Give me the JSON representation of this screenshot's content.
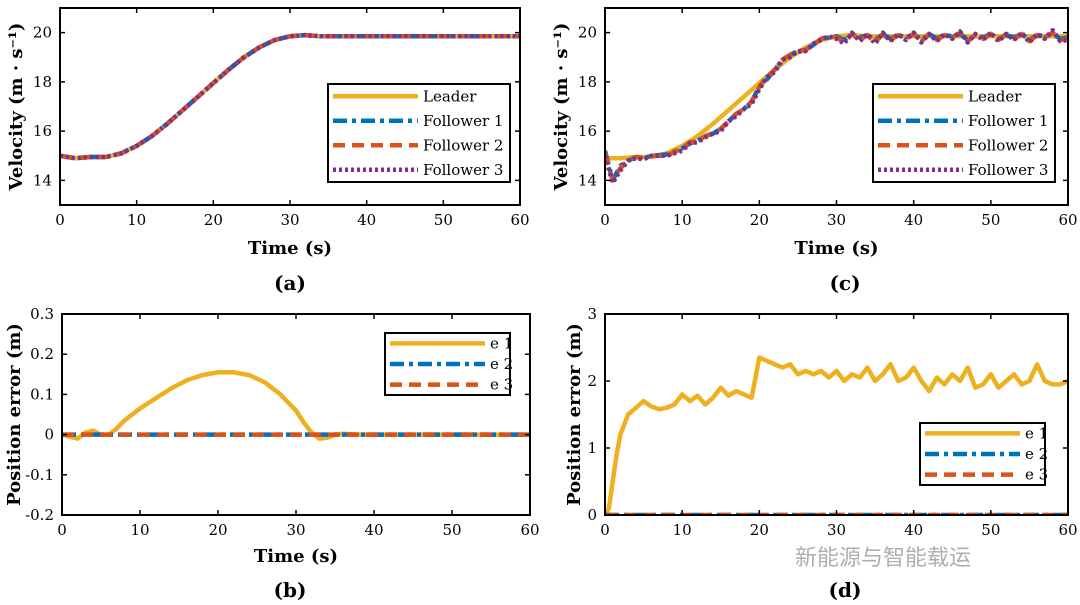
{
  "chart_data": [
    {
      "id": "a",
      "type": "line",
      "caption": "(a)",
      "xlabel": "Time (s)",
      "ylabel": "Velocity (m · s⁻¹)",
      "xlim": [
        0,
        60
      ],
      "ylim": [
        13,
        21
      ],
      "xticks": [
        0,
        10,
        20,
        30,
        40,
        50,
        60
      ],
      "yticks": [
        14,
        16,
        18,
        20
      ],
      "grid": false,
      "legend_position": "lower-right",
      "series": [
        {
          "name": "Leader",
          "color": "#EDB120",
          "dash": "solid",
          "x": [
            0,
            2,
            4,
            6,
            8,
            10,
            12,
            14,
            16,
            18,
            20,
            22,
            24,
            26,
            28,
            30,
            32,
            34,
            36,
            40,
            45,
            50,
            55,
            60
          ],
          "y": [
            15.0,
            14.9,
            14.95,
            14.95,
            15.1,
            15.4,
            15.8,
            16.3,
            16.85,
            17.4,
            17.95,
            18.5,
            19.0,
            19.4,
            19.7,
            19.85,
            19.9,
            19.85,
            19.85,
            19.85,
            19.85,
            19.85,
            19.85,
            19.85
          ]
        },
        {
          "name": "Follower 1",
          "color": "#0072BD",
          "dash": "dashdot",
          "x": [
            0,
            2,
            4,
            6,
            8,
            10,
            12,
            14,
            16,
            18,
            20,
            22,
            24,
            26,
            28,
            30,
            32,
            34,
            36,
            40,
            45,
            50,
            55,
            60
          ],
          "y": [
            15.0,
            14.9,
            14.95,
            14.95,
            15.1,
            15.4,
            15.8,
            16.3,
            16.85,
            17.4,
            17.95,
            18.5,
            19.0,
            19.4,
            19.7,
            19.85,
            19.9,
            19.85,
            19.85,
            19.85,
            19.85,
            19.85,
            19.85,
            19.85
          ]
        },
        {
          "name": "Follower 2",
          "color": "#D95319",
          "dash": "dashed",
          "x": [
            0,
            2,
            4,
            6,
            8,
            10,
            12,
            14,
            16,
            18,
            20,
            22,
            24,
            26,
            28,
            30,
            32,
            34,
            36,
            40,
            45,
            50,
            55,
            60
          ],
          "y": [
            15.0,
            14.9,
            14.95,
            14.95,
            15.1,
            15.4,
            15.8,
            16.3,
            16.85,
            17.4,
            17.95,
            18.5,
            19.0,
            19.4,
            19.7,
            19.85,
            19.9,
            19.85,
            19.85,
            19.85,
            19.85,
            19.85,
            19.85,
            19.85
          ]
        },
        {
          "name": "Follower 3",
          "color": "#7E2F8E",
          "dash": "dotted",
          "x": [
            0,
            2,
            4,
            6,
            8,
            10,
            12,
            14,
            16,
            18,
            20,
            22,
            24,
            26,
            28,
            30,
            32,
            34,
            36,
            40,
            45,
            50,
            55,
            60
          ],
          "y": [
            15.0,
            14.9,
            14.95,
            14.95,
            15.1,
            15.4,
            15.8,
            16.3,
            16.85,
            17.4,
            17.95,
            18.5,
            19.0,
            19.4,
            19.7,
            19.85,
            19.9,
            19.85,
            19.85,
            19.85,
            19.85,
            19.85,
            19.85,
            19.85
          ]
        }
      ]
    },
    {
      "id": "c",
      "type": "line",
      "caption": "(c)",
      "xlabel": "Time (s)",
      "ylabel": "Velocity (m · s⁻¹)",
      "xlim": [
        0,
        60
      ],
      "ylim": [
        13,
        21
      ],
      "xticks": [
        0,
        10,
        20,
        30,
        40,
        50,
        60
      ],
      "yticks": [
        14,
        16,
        18,
        20
      ],
      "grid": false,
      "legend_position": "lower-right",
      "series": [
        {
          "name": "Leader",
          "color": "#EDB120",
          "dash": "solid",
          "x": [
            0,
            2,
            4,
            6,
            8,
            10,
            12,
            14,
            16,
            18,
            20,
            22,
            24,
            26,
            28,
            30,
            32,
            34,
            36,
            40,
            45,
            50,
            55,
            60
          ],
          "y": [
            14.9,
            14.9,
            14.95,
            14.95,
            15.1,
            15.4,
            15.8,
            16.3,
            16.85,
            17.4,
            17.95,
            18.5,
            19.0,
            19.4,
            19.7,
            19.85,
            19.9,
            19.85,
            19.85,
            19.85,
            19.85,
            19.85,
            19.85,
            19.85
          ]
        },
        {
          "name": "Follower 1",
          "color": "#0072BD",
          "dash": "dashdot",
          "x": [
            0,
            1,
            2,
            3,
            4,
            5,
            6,
            8,
            10,
            11,
            12,
            13,
            14,
            15,
            16,
            17,
            18,
            19,
            20,
            21,
            22,
            23,
            24,
            25,
            26,
            27,
            28,
            29,
            30,
            31,
            32,
            33,
            34,
            35,
            36,
            37,
            38,
            39,
            40,
            41,
            42,
            43,
            44,
            45,
            46,
            47,
            48,
            49,
            50,
            51,
            52,
            53,
            54,
            55,
            56,
            57,
            58,
            59,
            60
          ],
          "y": [
            15.2,
            14.0,
            14.6,
            14.8,
            14.95,
            14.9,
            15.0,
            15.05,
            15.3,
            15.5,
            15.6,
            15.8,
            15.9,
            16.1,
            16.4,
            16.7,
            16.9,
            17.2,
            17.8,
            18.1,
            18.5,
            18.9,
            19.1,
            19.25,
            19.3,
            19.5,
            19.75,
            19.8,
            19.85,
            19.7,
            19.95,
            19.8,
            19.9,
            19.7,
            19.95,
            19.75,
            19.9,
            19.8,
            19.95,
            19.7,
            19.95,
            19.75,
            19.9,
            19.85,
            19.95,
            19.7,
            19.9,
            19.8,
            19.95,
            19.75,
            19.9,
            19.8,
            19.95,
            19.7,
            19.9,
            19.85,
            19.95,
            19.75,
            19.8
          ]
        },
        {
          "name": "Follower 2",
          "color": "#D95319",
          "dash": "dashed",
          "x": [
            0,
            1,
            2,
            3,
            4,
            5,
            6,
            8,
            10,
            11,
            12,
            13,
            14,
            15,
            16,
            17,
            18,
            19,
            20,
            21,
            22,
            23,
            24,
            25,
            26,
            27,
            28,
            29,
            30,
            31,
            32,
            33,
            34,
            35,
            36,
            37,
            38,
            39,
            40,
            41,
            42,
            43,
            44,
            45,
            46,
            47,
            48,
            49,
            50,
            51,
            52,
            53,
            54,
            55,
            56,
            57,
            58,
            59,
            60
          ],
          "y": [
            15.1,
            14.0,
            14.5,
            14.8,
            14.95,
            14.9,
            15.0,
            15.0,
            15.3,
            15.55,
            15.6,
            15.8,
            15.9,
            16.1,
            16.4,
            16.7,
            16.9,
            17.2,
            17.8,
            18.2,
            18.5,
            18.9,
            19.1,
            19.2,
            19.3,
            19.5,
            19.75,
            19.85,
            19.8,
            19.6,
            19.95,
            19.7,
            19.9,
            19.6,
            19.95,
            19.7,
            19.9,
            19.75,
            19.95,
            19.65,
            19.95,
            19.7,
            19.9,
            19.8,
            20.0,
            19.65,
            19.9,
            19.75,
            19.95,
            19.7,
            19.95,
            19.75,
            19.95,
            19.65,
            19.9,
            19.8,
            20.0,
            19.7,
            19.75
          ]
        },
        {
          "name": "Follower 3",
          "color": "#7E2F8E",
          "dash": "dotted",
          "x": [
            0,
            1,
            2,
            3,
            4,
            5,
            6,
            8,
            10,
            11,
            12,
            13,
            14,
            15,
            16,
            17,
            18,
            19,
            20,
            21,
            22,
            23,
            24,
            25,
            26,
            27,
            28,
            29,
            30,
            31,
            32,
            33,
            34,
            35,
            36,
            37,
            38,
            39,
            40,
            41,
            42,
            43,
            44,
            45,
            46,
            47,
            48,
            49,
            50,
            51,
            52,
            53,
            54,
            55,
            56,
            57,
            58,
            59,
            60
          ],
          "y": [
            15.0,
            13.9,
            14.4,
            14.8,
            14.9,
            14.85,
            15.0,
            15.0,
            15.2,
            15.5,
            15.55,
            15.75,
            15.9,
            16.0,
            16.4,
            16.6,
            16.9,
            17.1,
            17.7,
            18.2,
            18.4,
            18.9,
            19.0,
            19.25,
            19.25,
            19.55,
            19.7,
            19.85,
            19.75,
            19.55,
            20.0,
            19.65,
            19.95,
            19.55,
            20.0,
            19.65,
            19.95,
            19.7,
            20.0,
            19.6,
            19.95,
            19.65,
            19.95,
            19.75,
            20.05,
            19.6,
            19.95,
            19.7,
            20.0,
            19.65,
            19.95,
            19.7,
            20.0,
            19.6,
            19.95,
            19.75,
            20.1,
            19.65,
            19.7
          ]
        }
      ]
    },
    {
      "id": "b",
      "type": "line",
      "caption": "(b)",
      "xlabel": "Time (s)",
      "ylabel": "Position error (m)",
      "xlim": [
        0,
        60
      ],
      "ylim": [
        -0.2,
        0.3
      ],
      "xticks": [
        0,
        10,
        20,
        30,
        40,
        50,
        60
      ],
      "yticks": [
        -0.2,
        -0.1,
        0,
        0.1,
        0.2,
        0.3
      ],
      "grid": false,
      "legend_position": "top-right",
      "series": [
        {
          "name": "e 1",
          "color": "#EDB120",
          "dash": "solid",
          "x": [
            0,
            1,
            2,
            3,
            4,
            5,
            6,
            7,
            8,
            10,
            12,
            14,
            16,
            18,
            20,
            22,
            24,
            26,
            28,
            30,
            31,
            32,
            33,
            34,
            35,
            36,
            38,
            40,
            45,
            50,
            55,
            60
          ],
          "y": [
            0,
            -0.005,
            -0.01,
            0.005,
            0.01,
            0.0,
            0.0,
            0.015,
            0.035,
            0.065,
            0.09,
            0.115,
            0.135,
            0.148,
            0.155,
            0.155,
            0.148,
            0.13,
            0.1,
            0.06,
            0.03,
            0.005,
            -0.01,
            -0.008,
            0.0,
            0.002,
            0.0,
            0.0,
            0.0,
            0.0,
            0.0,
            0.0
          ]
        },
        {
          "name": "e 2",
          "color": "#0072BD",
          "dash": "dashdot",
          "x": [
            0,
            60
          ],
          "y": [
            0,
            0
          ]
        },
        {
          "name": "e 3",
          "color": "#D95319",
          "dash": "dashed",
          "x": [
            0,
            60
          ],
          "y": [
            0,
            0
          ]
        }
      ]
    },
    {
      "id": "d",
      "type": "line",
      "caption": "(d)",
      "xlabel": "",
      "ylabel": "Position error (m)",
      "xlim": [
        0,
        60
      ],
      "ylim": [
        0,
        3
      ],
      "xticks": [
        0,
        10,
        20,
        30,
        40,
        50,
        60
      ],
      "yticks": [
        0,
        1,
        2,
        3
      ],
      "grid": false,
      "legend_position": "lower-right",
      "series": [
        {
          "name": "e 1",
          "color": "#EDB120",
          "dash": "solid",
          "x": [
            0,
            0.5,
            1,
            1.5,
            2,
            3,
            4,
            5,
            6,
            7,
            8,
            9,
            10,
            11,
            12,
            13,
            14,
            15,
            16,
            17,
            18,
            19,
            20,
            21,
            22,
            23,
            24,
            25,
            26,
            27,
            28,
            29,
            30,
            31,
            32,
            33,
            34,
            35,
            36,
            37,
            38,
            39,
            40,
            41,
            42,
            43,
            44,
            45,
            46,
            47,
            48,
            49,
            50,
            51,
            52,
            53,
            54,
            55,
            56,
            57,
            58,
            59,
            60
          ],
          "y": [
            0,
            0.1,
            0.5,
            0.9,
            1.2,
            1.5,
            1.6,
            1.7,
            1.62,
            1.58,
            1.6,
            1.65,
            1.8,
            1.7,
            1.78,
            1.65,
            1.75,
            1.9,
            1.78,
            1.85,
            1.8,
            1.75,
            2.35,
            2.3,
            2.25,
            2.2,
            2.25,
            2.1,
            2.15,
            2.1,
            2.15,
            2.05,
            2.15,
            2.0,
            2.1,
            2.05,
            2.2,
            2.0,
            2.1,
            2.25,
            2.0,
            2.05,
            2.2,
            2.0,
            1.85,
            2.05,
            1.95,
            2.1,
            2.0,
            2.2,
            1.9,
            1.95,
            2.1,
            1.9,
            2.0,
            2.1,
            1.95,
            2.0,
            2.25,
            2.0,
            1.95,
            1.95,
            2.0
          ]
        },
        {
          "name": "e 2",
          "color": "#0072BD",
          "dash": "dashdot",
          "x": [
            0,
            60
          ],
          "y": [
            0,
            0
          ]
        },
        {
          "name": "e 3",
          "color": "#D95319",
          "dash": "dashed",
          "x": [
            0,
            60
          ],
          "y": [
            0,
            0
          ]
        }
      ]
    }
  ],
  "watermark": "新能源与智能载运"
}
